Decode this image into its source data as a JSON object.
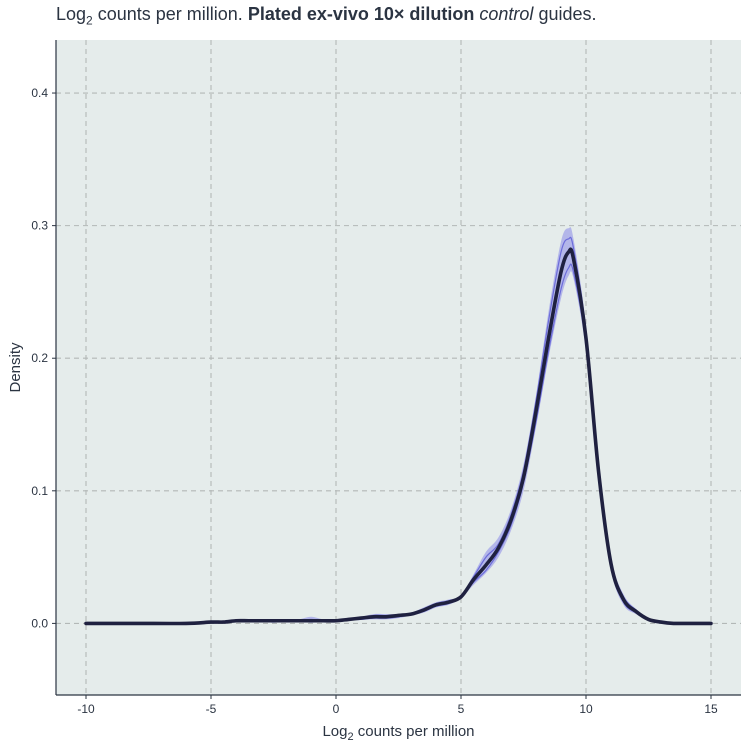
{
  "title": {
    "prefix": "Log",
    "subscript": "2",
    "rest": " counts per million. ",
    "bold": "Plated ex-vivo 10× dilution",
    "space": " ",
    "italic": "control",
    "suffix": " guides."
  },
  "colors": {
    "panel_background": "#e5eceb",
    "grid": "#b3b8b7",
    "mean_line": "#1f2140",
    "replicate_lines": "#5a5ad6",
    "ribbon": "#8a8ae8",
    "axis": "#2b3442"
  },
  "chart_data": {
    "type": "line",
    "title": "Log2 counts per million. Plated ex-vivo 10× dilution control guides.",
    "xlabel": "Log2 counts per million",
    "ylabel": "Density",
    "xlim": [
      -11.2,
      16.2
    ],
    "ylim": [
      -0.054,
      0.44
    ],
    "grid": true,
    "x_ticks": [
      -10,
      -5,
      0,
      5,
      10,
      15
    ],
    "y_ticks": [
      0.0,
      0.1,
      0.2,
      0.3,
      0.4
    ],
    "x_tick_labels": [
      "-10",
      "-5",
      "0",
      "5",
      "10",
      "15"
    ],
    "y_tick_labels": [
      "0.0",
      "0.1",
      "0.2",
      "0.3",
      "0.4"
    ],
    "x": [
      -10,
      -8,
      -6,
      -5,
      -4.5,
      -4,
      -3.5,
      -3,
      -2.5,
      -2,
      -1.5,
      -1,
      -0.5,
      0,
      0.5,
      1,
      1.5,
      2,
      2.5,
      3,
      3.5,
      4,
      4.5,
      5,
      5.5,
      6,
      6.5,
      7,
      7.5,
      8,
      8.5,
      9,
      9.3,
      9.5,
      10,
      10.5,
      11,
      11.5,
      12,
      12.5,
      13,
      13.5,
      14,
      15
    ],
    "series": [
      {
        "values": [
          0,
          0,
          0,
          0.001,
          0.001,
          0.002,
          0.002,
          0.002,
          0.002,
          0.002,
          0.002,
          0.002,
          0.002,
          0.002,
          0.003,
          0.004,
          0.005,
          0.005,
          0.006,
          0.007,
          0.01,
          0.014,
          0.016,
          0.02,
          0.033,
          0.044,
          0.057,
          0.078,
          0.11,
          0.16,
          0.215,
          0.265,
          0.28,
          0.275,
          0.215,
          0.115,
          0.045,
          0.018,
          0.009,
          0.003,
          0.001,
          0,
          0,
          0
        ]
      },
      {
        "values": [
          0,
          0,
          0,
          0.001,
          0.001,
          0.002,
          0.002,
          0.002,
          0.002,
          0.002,
          0.002,
          0.003,
          0.002,
          0.002,
          0.003,
          0.004,
          0.006,
          0.006,
          0.006,
          0.007,
          0.011,
          0.015,
          0.017,
          0.02,
          0.035,
          0.05,
          0.06,
          0.082,
          0.115,
          0.168,
          0.228,
          0.28,
          0.29,
          0.283,
          0.22,
          0.118,
          0.047,
          0.02,
          0.01,
          0.003,
          0.001,
          0,
          0,
          0
        ]
      },
      {
        "values": [
          0,
          0,
          0,
          0.001,
          0.001,
          0.002,
          0.002,
          0.002,
          0.001,
          0.002,
          0.002,
          0.001,
          0.002,
          0.002,
          0.003,
          0.003,
          0.004,
          0.004,
          0.005,
          0.007,
          0.009,
          0.013,
          0.015,
          0.02,
          0.031,
          0.04,
          0.054,
          0.074,
          0.106,
          0.152,
          0.205,
          0.252,
          0.268,
          0.265,
          0.21,
          0.112,
          0.043,
          0.016,
          0.008,
          0.003,
          0.001,
          0,
          0,
          0
        ]
      }
    ],
    "ribbon": {
      "lower": [
        0,
        0,
        0,
        0,
        0.001,
        0.001,
        0.001,
        0.001,
        0.001,
        0.001,
        0.001,
        0.001,
        0.001,
        0.002,
        0.002,
        0.003,
        0.003,
        0.003,
        0.004,
        0.006,
        0.008,
        0.012,
        0.014,
        0.019,
        0.029,
        0.038,
        0.05,
        0.07,
        0.1,
        0.148,
        0.2,
        0.245,
        0.262,
        0.26,
        0.205,
        0.108,
        0.04,
        0.014,
        0.007,
        0.002,
        0.001,
        0,
        0,
        0
      ],
      "upper": [
        0,
        0,
        0.001,
        0.002,
        0.002,
        0.003,
        0.003,
        0.003,
        0.003,
        0.003,
        0.003,
        0.005,
        0.003,
        0.003,
        0.004,
        0.005,
        0.007,
        0.007,
        0.007,
        0.008,
        0.012,
        0.016,
        0.018,
        0.021,
        0.037,
        0.054,
        0.065,
        0.086,
        0.12,
        0.172,
        0.235,
        0.288,
        0.298,
        0.29,
        0.225,
        0.122,
        0.05,
        0.022,
        0.011,
        0.004,
        0.001,
        0,
        0,
        0
      ]
    }
  }
}
